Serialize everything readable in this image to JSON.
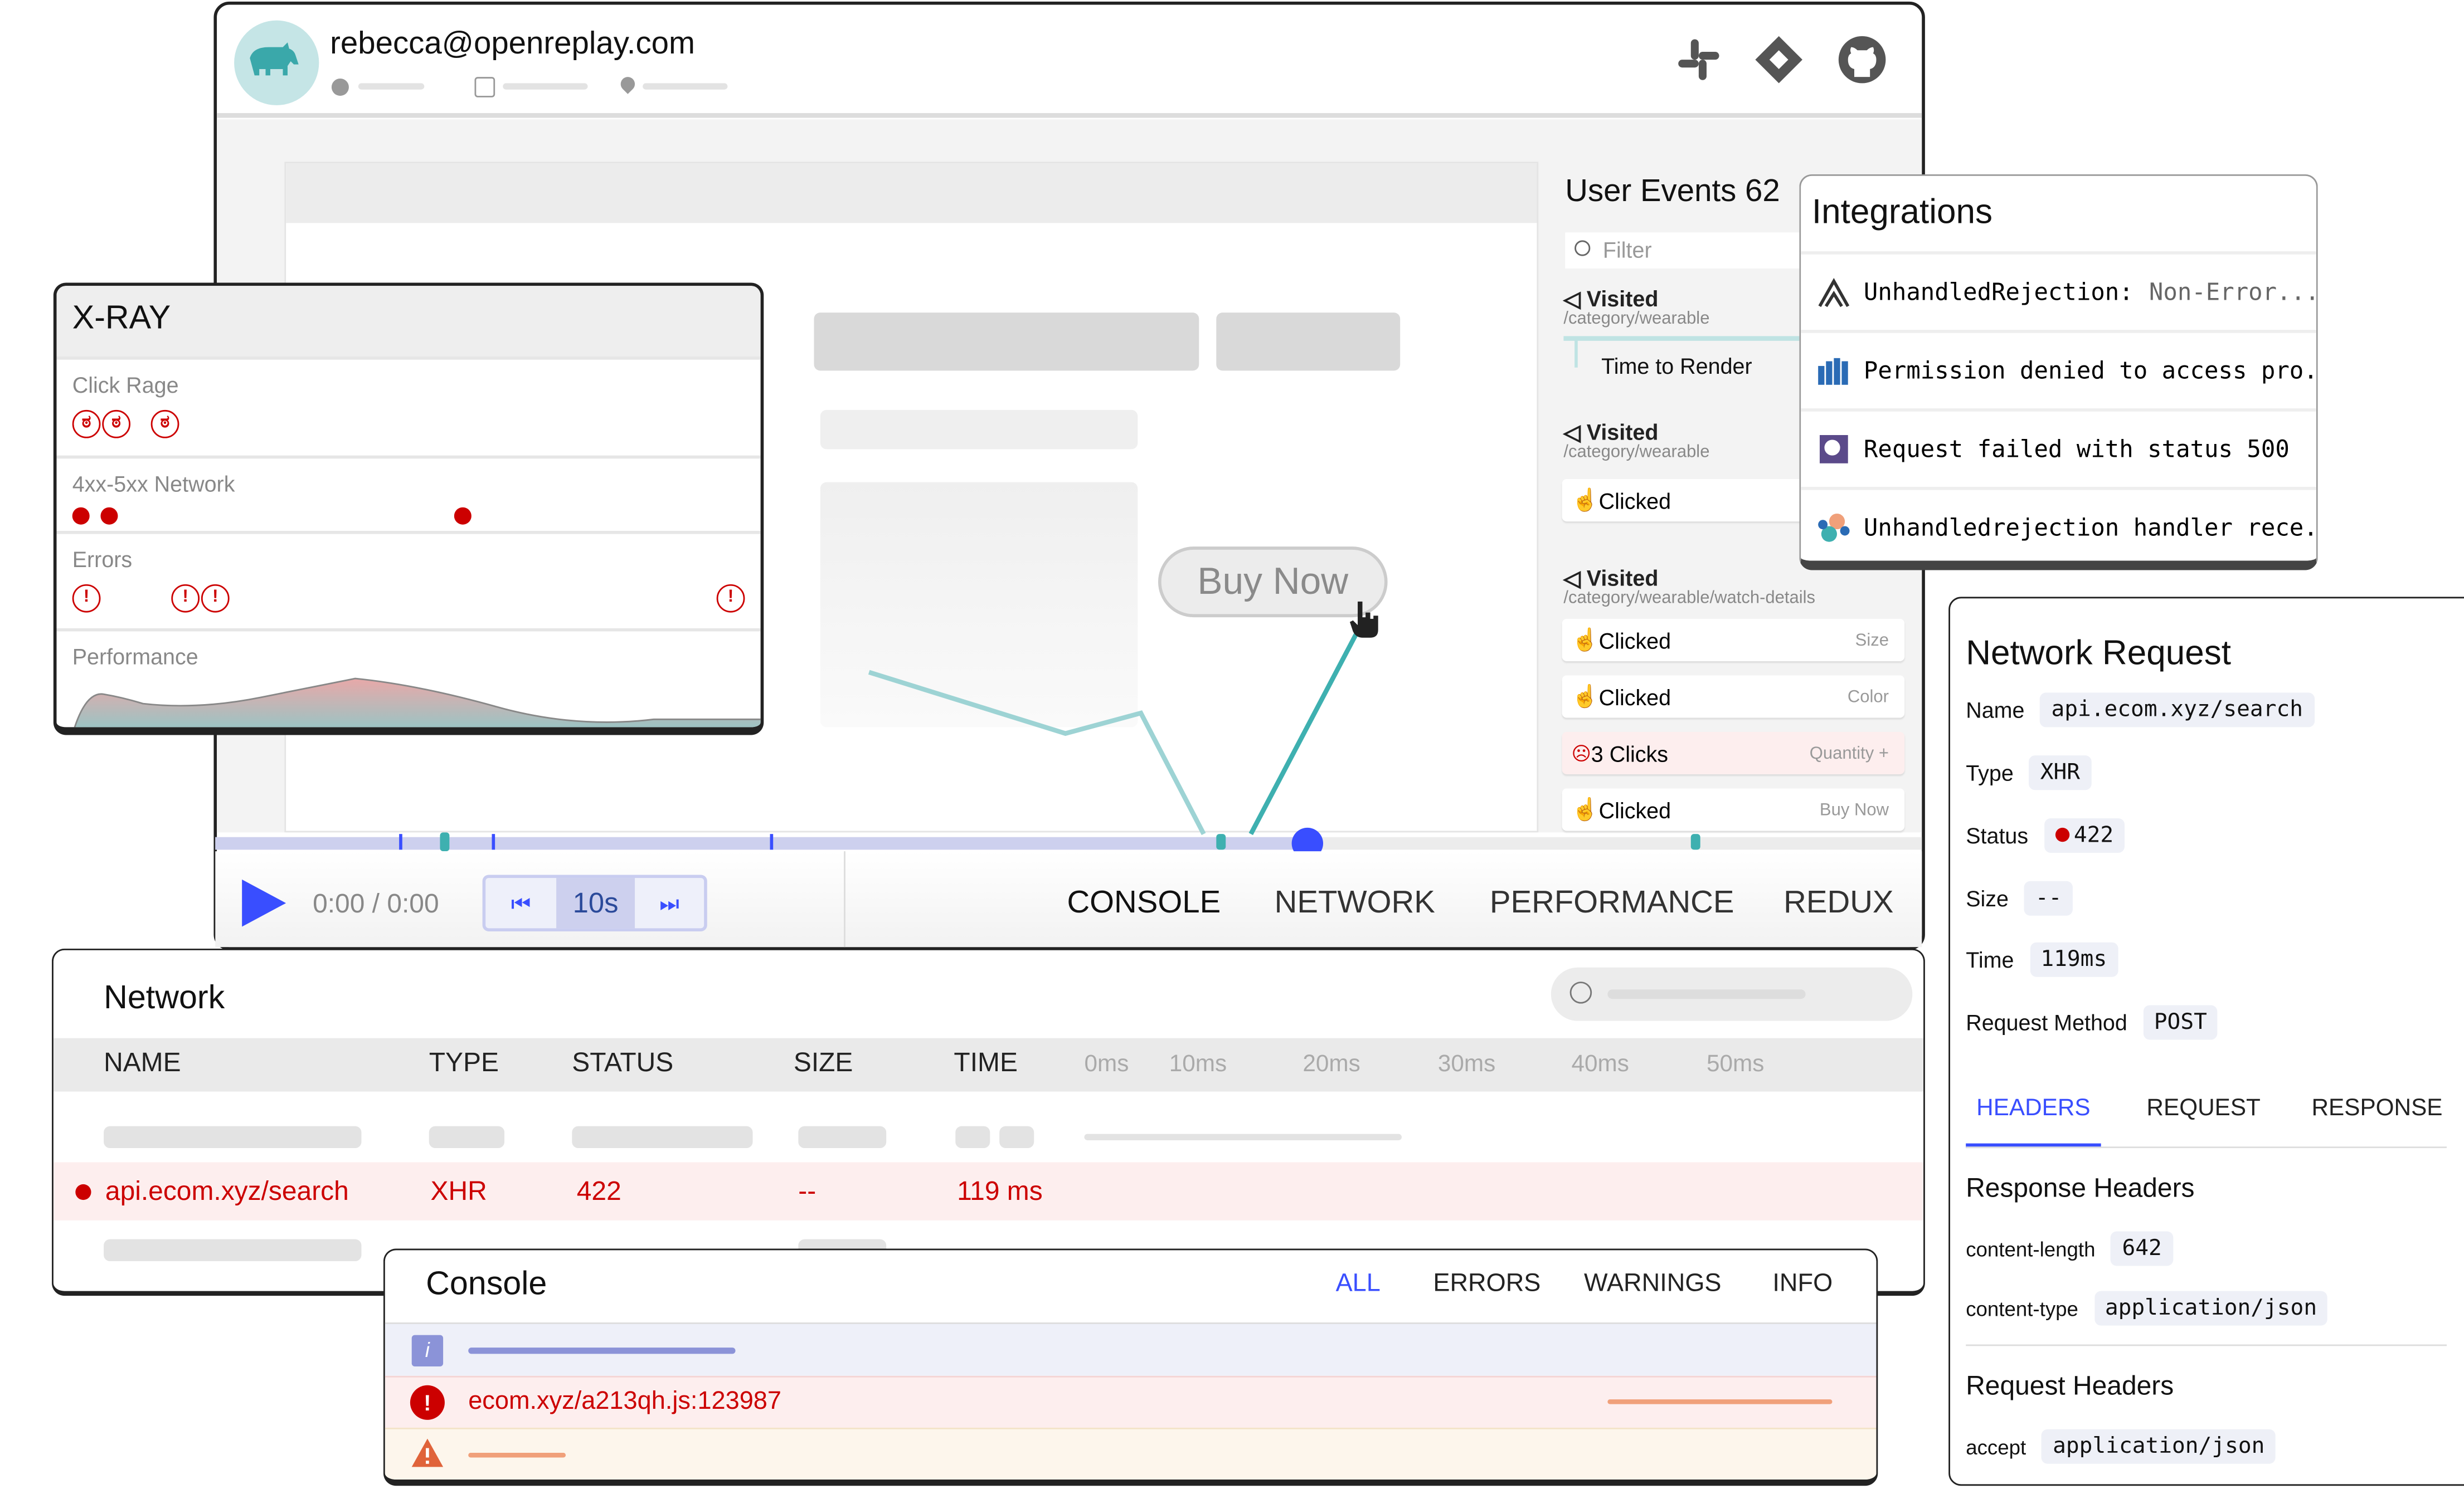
{
  "session": {
    "user_email": "rebecca@openreplay.com",
    "avatar_icon": "rhino-icon",
    "meta_icons": [
      "clock-icon",
      "browser-icon",
      "location-pin-icon"
    ],
    "integration_icons": [
      "slack-icon",
      "jira-icon",
      "github-icon"
    ]
  },
  "replay": {
    "cta_label": "Buy Now"
  },
  "user_events": {
    "title": "User Events 62",
    "filter_placeholder": "Filter",
    "items": [
      {
        "type": "Visited",
        "path": "/category/wearable",
        "sub": "Time to Render"
      },
      {
        "type": "Visited",
        "path": "/category/wearable"
      },
      {
        "type": "Clicked",
        "detail": ""
      },
      {
        "type": "Visited",
        "path": "/category/wearable/watch-details"
      },
      {
        "type": "Clicked",
        "detail": "Size"
      },
      {
        "type": "Clicked",
        "detail": "Color"
      },
      {
        "type": "3 Clicks",
        "detail": "Quantity +"
      },
      {
        "type": "Clicked",
        "detail": "Buy Now"
      }
    ]
  },
  "player": {
    "time": "0:00 / 0:00",
    "skip_interval": "10s",
    "progress_pct": 64,
    "tabs": [
      "CONSOLE",
      "NETWORK",
      "PERFORMANCE",
      "REDUX"
    ],
    "accent": "#394eff"
  },
  "xray": {
    "title": "X-RAY",
    "sections": [
      "Click Rage",
      "4xx-5xx Network",
      "Errors",
      "Performance"
    ]
  },
  "integrations": {
    "title": "Integrations",
    "items": [
      {
        "icon": "sentry-icon",
        "text": "UnhandledRejection:",
        "muted": "Non-Error..."
      },
      {
        "icon": "bugsnag-icon",
        "text": "Permission denied to access pro..."
      },
      {
        "icon": "datadog-icon",
        "text": "Request failed with status 500"
      },
      {
        "icon": "elastic-icon",
        "text": "Unhandledrejection handler rece.."
      }
    ]
  },
  "network_request": {
    "title": "Network Request",
    "fields": [
      {
        "label": "Name",
        "value": "api.ecom.xyz/search"
      },
      {
        "label": "Type",
        "value": "XHR"
      },
      {
        "label": "Status",
        "value": "422"
      },
      {
        "label": "Size",
        "value": "--"
      },
      {
        "label": "Time",
        "value": "119ms"
      },
      {
        "label": "Request Method",
        "value": "POST"
      }
    ],
    "tabs": [
      "HEADERS",
      "REQUEST",
      "RESPONSE"
    ],
    "active_tab": "HEADERS",
    "response_headers_title": "Response Headers",
    "response_headers": [
      {
        "label": "content-length",
        "value": "642"
      },
      {
        "label": "content-type",
        "value": "application/json"
      }
    ],
    "request_headers_title": "Request Headers",
    "request_headers": [
      {
        "label": "accept",
        "value": "application/json"
      }
    ]
  },
  "network": {
    "title": "Network",
    "columns": [
      "NAME",
      "TYPE",
      "STATUS",
      "SIZE",
      "TIME"
    ],
    "ticks": [
      "0ms",
      "10ms",
      "20ms",
      "30ms",
      "40ms",
      "50ms"
    ],
    "row": {
      "name": "api.ecom.xyz/search",
      "type": "XHR",
      "status": "422",
      "size": "--",
      "time": "119 ms"
    }
  },
  "console": {
    "title": "Console",
    "tabs": [
      "ALL",
      "ERRORS",
      "WARNINGS",
      "INFO"
    ],
    "active_tab": "ALL",
    "error_text": "ecom.xyz/a213qh.js:123987"
  }
}
